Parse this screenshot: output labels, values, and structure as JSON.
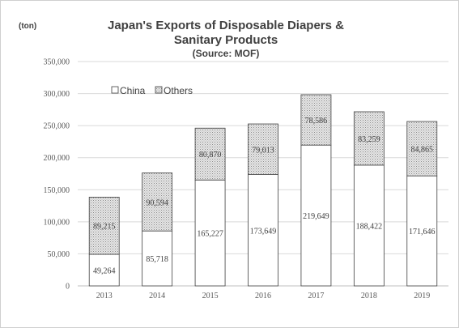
{
  "chart_data": {
    "type": "bar",
    "stacked": true,
    "title_line1": "Japan's Exports of Disposable Diapers &",
    "title_line2": "Sanitary Products",
    "subtitle": "(Source: MOF)",
    "ylabel": "(ton)",
    "xlabel": "",
    "ylim": [
      0,
      350000
    ],
    "yticks": [
      0,
      50000,
      100000,
      150000,
      200000,
      250000,
      300000,
      350000
    ],
    "ytick_labels": [
      "0",
      "50,000",
      "100,000",
      "150,000",
      "200,000",
      "250,000",
      "300,000",
      "350,000"
    ],
    "grid": true,
    "legend_position": "top-left",
    "categories": [
      "2013",
      "2014",
      "2015",
      "2016",
      "2017",
      "2018",
      "2019"
    ],
    "series": [
      {
        "name": "China",
        "color": "#ffffff",
        "values": [
          49264,
          85718,
          165227,
          173649,
          219649,
          188422,
          171646
        ],
        "labels": [
          "49,264",
          "85,718",
          "165,227",
          "173,649",
          "219,649",
          "188,422",
          "171,646"
        ]
      },
      {
        "name": "Others",
        "color": "#e3e3e3",
        "pattern": "stipple",
        "values": [
          89215,
          90594,
          80870,
          79013,
          78586,
          83259,
          84865
        ],
        "labels": [
          "89,215",
          "90,594",
          "80,870",
          "79,013",
          "78,586",
          "83,259",
          "84,865"
        ]
      }
    ]
  }
}
